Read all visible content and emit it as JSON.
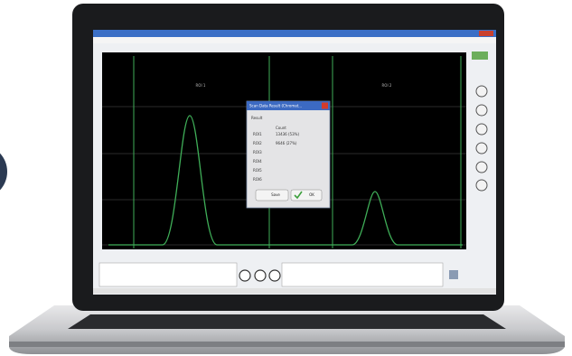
{
  "window": {
    "plot": {
      "roi_labels": [
        "ROI 1",
        "ROI 2"
      ]
    },
    "dialog": {
      "title": "Scan Data Result (Chromat...",
      "section": "Result",
      "column_header": "Count",
      "rows": [
        "ROI1",
        "ROI2",
        "ROI3",
        "ROI4",
        "ROI5",
        "ROI6"
      ],
      "row_values": [
        "13436 (53%)",
        "9646 (27%)"
      ],
      "buttons": {
        "save": "Save",
        "ok": "OK"
      }
    }
  }
}
